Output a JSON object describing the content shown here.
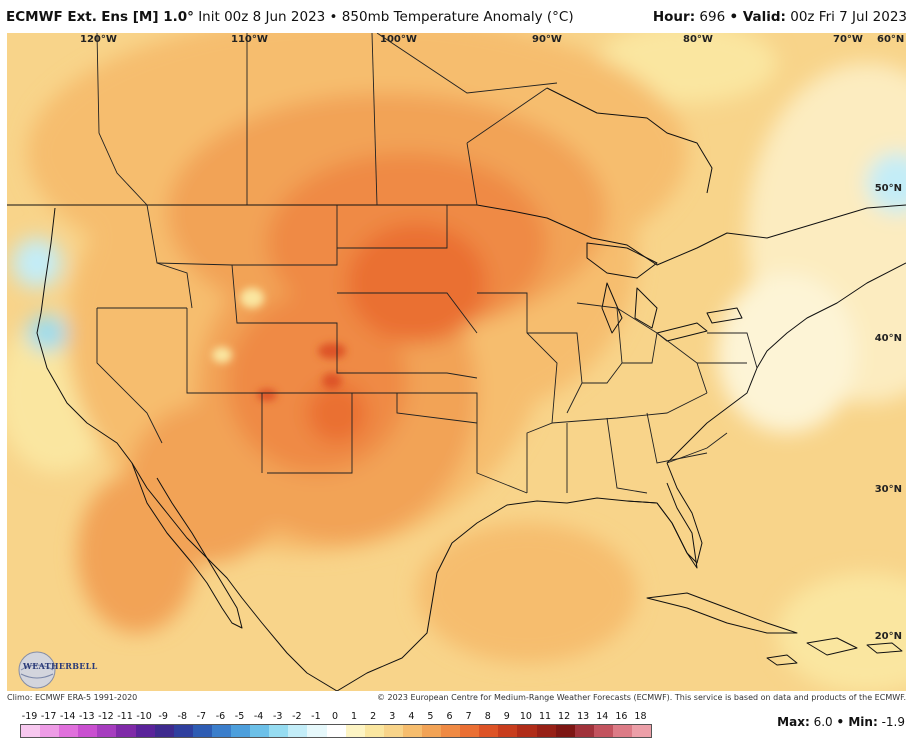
{
  "header": {
    "model": "ECMWF Ext.",
    "ens": "Ens [M] 1.0°",
    "init": "Init 00z 8 Jun 2023 • 850mb Temperature Anomaly (°C)",
    "hour_label": "Hour:",
    "hour_value": "696",
    "valid_label": "• Valid:",
    "valid_value": "00z Fri 7 Jul 2023"
  },
  "map": {
    "lon_labels": [
      "120°W",
      "110°W",
      "100°W",
      "90°W",
      "80°W",
      "70°W",
      "60°N"
    ],
    "lat_labels": [
      "50°N",
      "40°N",
      "30°N",
      "20°N"
    ],
    "logo_text": "WEATHERBELL"
  },
  "footer": {
    "climo": "Climo: ECMWF ERA-5 1991-2020",
    "copyright": "© 2023 European Centre for Medium-Range Weather Forecasts (ECMWF). This service is based on data and products of the ECMWF."
  },
  "colorbar": {
    "labels": [
      "-19",
      "-17",
      "-14",
      "-13",
      "-12",
      "-11",
      "-10",
      "-9",
      "-8",
      "-7",
      "-6",
      "-5",
      "-4",
      "-3",
      "-2",
      "-1",
      "0",
      "1",
      "2",
      "3",
      "4",
      "5",
      "6",
      "7",
      "8",
      "9",
      "10",
      "11",
      "12",
      "13",
      "14",
      "16",
      "18"
    ],
    "colors": [
      "#f7c8ef",
      "#ee9ce6",
      "#e070dc",
      "#c94fd0",
      "#a63dbf",
      "#7f2aa8",
      "#5a239a",
      "#3e2a8e",
      "#2f3f9e",
      "#2e5cb3",
      "#3b7ecb",
      "#4d9fdc",
      "#6cc0e8",
      "#96dcf1",
      "#c3edf8",
      "#e6f8fb",
      "#ffffff",
      "#fdf4c4",
      "#fae6a0",
      "#f8d48a",
      "#f6bd6e",
      "#f2a356",
      "#ef8a44",
      "#ea6f33",
      "#dd5326",
      "#c83d1d",
      "#b02c18",
      "#972016",
      "#7d1613",
      "#a0323a",
      "#c2535e",
      "#dc7b86",
      "#ec9fa8"
    ]
  },
  "stats": {
    "max_label": "Max:",
    "max_value": "6.0",
    "min_label": "• Min:",
    "min_value": "-1.9"
  }
}
